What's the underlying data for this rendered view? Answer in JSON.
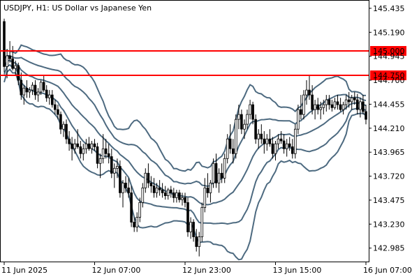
{
  "chart_data": {
    "type": "candlestick",
    "symbol": "USDJPY",
    "timeframe": "H1",
    "description": "US Dollar vs Japanese Yen",
    "title_text": "USDJPY, H1:  US Dollar vs Japanese Yen",
    "y_ticks": [
      "145.435",
      "145.190",
      "144.945",
      "144.700",
      "144.455",
      "144.210",
      "143.965",
      "143.720",
      "143.475",
      "143.230",
      "142.985"
    ],
    "ylim": [
      142.84,
      145.52
    ],
    "x_ticks": [
      {
        "label": "11 Jun 2025",
        "index": 0
      },
      {
        "label": "12 Jun 07:00",
        "index": 32
      },
      {
        "label": "12 Jun 23:00",
        "index": 64
      },
      {
        "label": "13 Jun 15:00",
        "index": 96
      },
      {
        "label": "16 Jun 07:00",
        "index": 128
      }
    ],
    "horizontal_levels": [
      {
        "value": 145.0,
        "label": "145.000",
        "color": "#ff0000"
      },
      {
        "value": 144.75,
        "label": "144.750",
        "color": "#ff0000"
      }
    ],
    "colors": {
      "bull": "#ffffff",
      "bear": "#000000",
      "wick": "#000000",
      "band": "#4d6a80",
      "hline": "#ff0000"
    },
    "candles": [
      [
        145.3,
        145.33,
        144.78,
        144.84
      ],
      [
        144.84,
        145.02,
        144.72,
        144.95
      ],
      [
        144.95,
        145.1,
        144.88,
        144.92
      ],
      [
        144.92,
        145.05,
        144.8,
        144.82
      ],
      [
        144.82,
        144.9,
        144.75,
        144.85
      ],
      [
        144.85,
        144.88,
        144.65,
        144.7
      ],
      [
        144.7,
        144.78,
        144.5,
        144.55
      ],
      [
        144.55,
        144.65,
        144.45,
        144.62
      ],
      [
        144.62,
        144.7,
        144.52,
        144.58
      ],
      [
        144.58,
        144.63,
        144.52,
        144.6
      ],
      [
        144.6,
        144.68,
        144.55,
        144.65
      ],
      [
        144.65,
        144.7,
        144.5,
        144.55
      ],
      [
        144.55,
        144.62,
        144.48,
        144.58
      ],
      [
        144.58,
        144.7,
        144.55,
        144.68
      ],
      [
        144.68,
        144.75,
        144.58,
        144.6
      ],
      [
        144.6,
        144.65,
        144.48,
        144.52
      ],
      [
        144.52,
        144.6,
        144.45,
        144.55
      ],
      [
        144.55,
        144.6,
        144.42,
        144.45
      ],
      [
        144.45,
        144.5,
        144.35,
        144.4
      ],
      [
        144.4,
        144.45,
        144.3,
        144.35
      ],
      [
        144.35,
        144.38,
        144.15,
        144.2
      ],
      [
        144.2,
        144.28,
        144.12,
        144.25
      ],
      [
        144.25,
        144.3,
        144.05,
        144.1
      ],
      [
        144.1,
        144.18,
        143.98,
        144.05
      ],
      [
        144.05,
        144.12,
        143.88,
        144.0
      ],
      [
        144.0,
        144.1,
        143.95,
        144.05
      ],
      [
        144.05,
        144.2,
        144.0,
        144.02
      ],
      [
        144.02,
        144.08,
        143.9,
        143.95
      ],
      [
        143.95,
        144.05,
        143.88,
        144.0
      ],
      [
        144.0,
        144.1,
        143.95,
        144.05
      ],
      [
        144.05,
        144.12,
        143.98,
        144.0
      ],
      [
        144.0,
        144.08,
        143.95,
        144.05
      ],
      [
        144.05,
        144.1,
        143.98,
        144.02
      ],
      [
        144.02,
        144.06,
        143.8,
        143.85
      ],
      [
        143.85,
        143.95,
        143.7,
        143.9
      ],
      [
        143.9,
        144.15,
        143.85,
        144.0
      ],
      [
        144.0,
        144.1,
        143.9,
        143.95
      ],
      [
        143.95,
        144.05,
        143.85,
        143.92
      ],
      [
        143.92,
        144.0,
        143.7,
        143.75
      ],
      [
        143.75,
        143.85,
        143.6,
        143.8
      ],
      [
        143.8,
        143.9,
        143.7,
        143.82
      ],
      [
        143.82,
        143.88,
        143.5,
        143.55
      ],
      [
        143.55,
        143.68,
        143.4,
        143.65
      ],
      [
        143.65,
        143.72,
        143.55,
        143.6
      ],
      [
        143.6,
        143.7,
        143.5,
        143.55
      ],
      [
        143.55,
        143.62,
        143.2,
        143.25
      ],
      [
        143.25,
        143.3,
        143.15,
        143.2
      ],
      [
        143.2,
        143.35,
        143.15,
        143.3
      ],
      [
        143.3,
        143.5,
        143.25,
        143.45
      ],
      [
        143.45,
        143.65,
        143.4,
        143.6
      ],
      [
        143.6,
        143.8,
        143.55,
        143.75
      ],
      [
        143.75,
        143.85,
        143.6,
        143.65
      ],
      [
        143.65,
        143.72,
        143.55,
        143.62
      ],
      [
        143.62,
        143.7,
        143.5,
        143.55
      ],
      [
        143.55,
        143.65,
        143.5,
        143.6
      ],
      [
        143.6,
        143.68,
        143.52,
        143.58
      ],
      [
        143.58,
        143.65,
        143.5,
        143.55
      ],
      [
        143.55,
        143.62,
        143.48,
        143.52
      ],
      [
        143.52,
        143.6,
        143.48,
        143.58
      ],
      [
        143.58,
        143.62,
        143.5,
        143.55
      ],
      [
        143.55,
        143.6,
        143.45,
        143.5
      ],
      [
        143.5,
        143.58,
        143.45,
        143.55
      ],
      [
        143.55,
        143.58,
        143.45,
        143.48
      ],
      [
        143.48,
        143.55,
        143.42,
        143.5
      ],
      [
        143.5,
        143.55,
        143.4,
        143.45
      ],
      [
        143.45,
        143.5,
        143.1,
        143.15
      ],
      [
        143.15,
        143.3,
        143.08,
        143.25
      ],
      [
        143.25,
        143.28,
        143.05,
        143.1
      ],
      [
        143.1,
        143.18,
        142.95,
        143.0
      ],
      [
        143.0,
        143.15,
        142.9,
        143.1
      ],
      [
        143.1,
        143.45,
        143.05,
        143.4
      ],
      [
        143.4,
        143.7,
        143.35,
        143.6
      ],
      [
        143.6,
        143.75,
        143.5,
        143.55
      ],
      [
        143.55,
        143.68,
        143.45,
        143.65
      ],
      [
        143.65,
        143.9,
        143.6,
        143.85
      ],
      [
        143.85,
        143.95,
        143.6,
        143.65
      ],
      [
        143.65,
        143.8,
        143.55,
        143.75
      ],
      [
        143.75,
        143.85,
        143.65,
        143.7
      ],
      [
        143.7,
        143.95,
        143.65,
        143.9
      ],
      [
        143.9,
        144.15,
        143.85,
        144.1
      ],
      [
        144.1,
        144.25,
        143.95,
        144.0
      ],
      [
        144.0,
        144.1,
        143.85,
        143.95
      ],
      [
        143.95,
        144.35,
        143.9,
        144.3
      ],
      [
        144.3,
        144.45,
        144.2,
        144.35
      ],
      [
        144.35,
        144.4,
        144.15,
        144.2
      ],
      [
        144.2,
        144.3,
        144.1,
        144.25
      ],
      [
        144.25,
        144.4,
        144.2,
        144.35
      ],
      [
        144.35,
        144.5,
        144.3,
        144.45
      ],
      [
        144.45,
        144.48,
        144.25,
        144.3
      ],
      [
        144.3,
        144.35,
        144.05,
        144.1
      ],
      [
        144.1,
        144.2,
        144.0,
        144.15
      ],
      [
        144.15,
        144.25,
        144.05,
        144.1
      ],
      [
        144.1,
        144.18,
        143.95,
        144.05
      ],
      [
        144.05,
        144.15,
        143.98,
        144.1
      ],
      [
        144.1,
        144.2,
        144.02,
        144.05
      ],
      [
        144.05,
        144.12,
        143.9,
        143.95
      ],
      [
        143.95,
        144.08,
        143.88,
        144.05
      ],
      [
        144.05,
        144.15,
        144.0,
        144.1
      ],
      [
        144.1,
        144.18,
        144.05,
        144.08
      ],
      [
        144.08,
        144.15,
        143.95,
        144.0
      ],
      [
        144.0,
        144.1,
        143.92,
        144.05
      ],
      [
        144.05,
        144.12,
        143.98,
        144.02
      ],
      [
        144.02,
        144.1,
        143.9,
        143.95
      ],
      [
        143.95,
        144.25,
        143.9,
        144.2
      ],
      [
        144.2,
        144.45,
        144.15,
        144.4
      ],
      [
        144.4,
        144.55,
        144.3,
        144.35
      ],
      [
        144.35,
        144.6,
        144.3,
        144.55
      ],
      [
        144.55,
        144.7,
        144.45,
        144.6
      ],
      [
        144.6,
        144.75,
        144.5,
        144.55
      ],
      [
        144.55,
        144.65,
        144.35,
        144.4
      ],
      [
        144.4,
        144.5,
        144.3,
        144.45
      ],
      [
        144.45,
        144.52,
        144.35,
        144.4
      ],
      [
        144.4,
        144.48,
        144.3,
        144.42
      ],
      [
        144.42,
        144.5,
        144.35,
        144.45
      ],
      [
        144.45,
        144.55,
        144.38,
        144.5
      ],
      [
        144.5,
        144.55,
        144.4,
        144.45
      ],
      [
        144.45,
        144.5,
        144.38,
        144.42
      ],
      [
        144.42,
        144.52,
        144.4,
        144.48
      ],
      [
        144.48,
        144.55,
        144.4,
        144.45
      ],
      [
        144.45,
        144.52,
        144.38,
        144.4
      ],
      [
        144.4,
        144.48,
        144.35,
        144.45
      ],
      [
        144.45,
        144.55,
        144.4,
        144.5
      ],
      [
        144.5,
        144.58,
        144.42,
        144.48
      ],
      [
        144.48,
        144.55,
        144.4,
        144.52
      ],
      [
        144.52,
        144.58,
        144.45,
        144.5
      ],
      [
        144.5,
        144.56,
        144.35,
        144.4
      ],
      [
        144.4,
        144.52,
        144.32,
        144.48
      ],
      [
        144.48,
        144.55,
        144.35,
        144.38
      ],
      [
        144.38,
        144.45,
        144.25,
        144.3
      ]
    ]
  }
}
